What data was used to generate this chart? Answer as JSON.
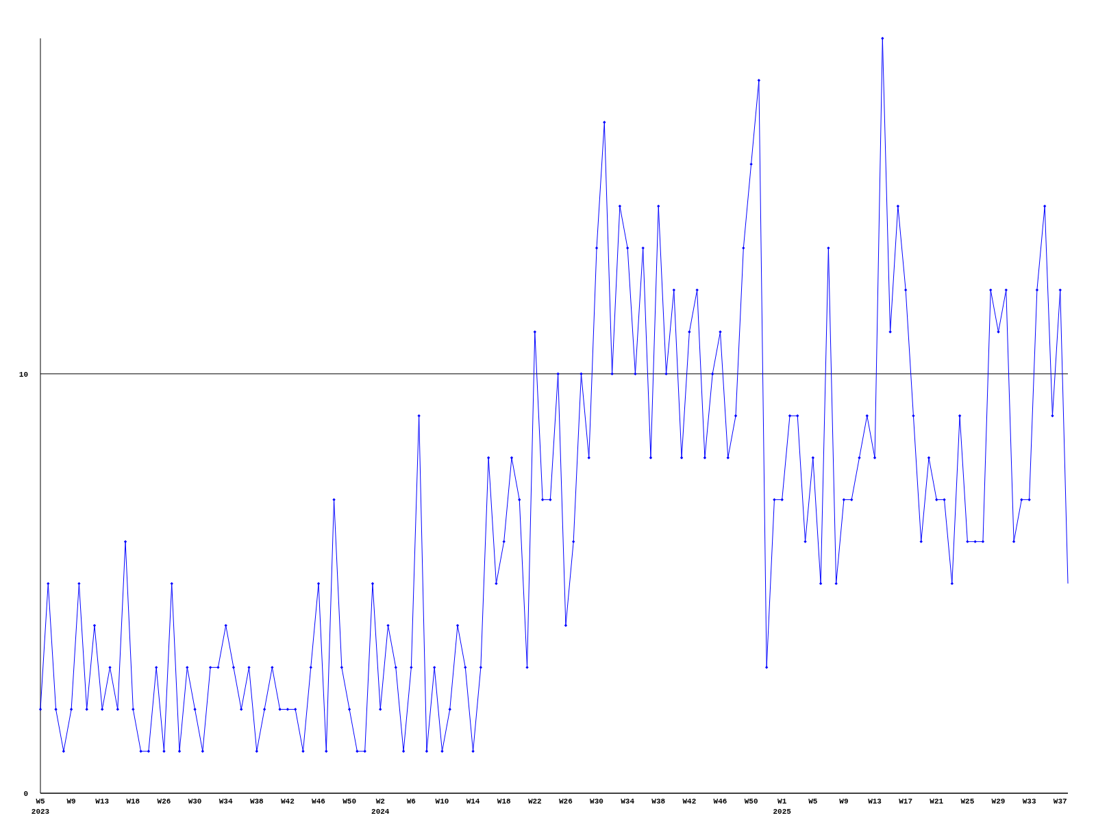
{
  "chart_data": {
    "type": "line",
    "categories": [
      "W5\n2023",
      null,
      null,
      null,
      "W9",
      null,
      null,
      null,
      "W13",
      null,
      null,
      null,
      "W18",
      null,
      null,
      null,
      "W26",
      null,
      null,
      null,
      "W30",
      null,
      null,
      null,
      "W34",
      null,
      null,
      null,
      "W38",
      null,
      null,
      null,
      "W42",
      null,
      null,
      null,
      "W46",
      null,
      null,
      null,
      "W50",
      null,
      null,
      null,
      "W2\n2024",
      null,
      null,
      null,
      "W6",
      null,
      null,
      null,
      "W10",
      null,
      null,
      null,
      "W14",
      null,
      null,
      null,
      "W18",
      null,
      null,
      null,
      "W22",
      null,
      null,
      null,
      "W26",
      null,
      null,
      null,
      "W30",
      null,
      null,
      null,
      "W34",
      null,
      null,
      null,
      "W38",
      null,
      null,
      null,
      "W42",
      null,
      null,
      null,
      "W46",
      null,
      null,
      null,
      "W50",
      null,
      null,
      null,
      "W1\n2025",
      null,
      null,
      null,
      "W5",
      null,
      null,
      null,
      "W9",
      null,
      null,
      null,
      "W13",
      null,
      null,
      null,
      "W17",
      null,
      null,
      null,
      "W21",
      null,
      null,
      null,
      "W25",
      null,
      null,
      null,
      "W29",
      null,
      null,
      null,
      "W33",
      null,
      null,
      null,
      "W37",
      null
    ],
    "series": [
      {
        "color": "#0000ff",
        "values": [
          2,
          5,
          2,
          1,
          2,
          5,
          2,
          4,
          2,
          3,
          2,
          6,
          2,
          1,
          1,
          3,
          1,
          5,
          1,
          3,
          2,
          1,
          3,
          3,
          4,
          3,
          2,
          3,
          1,
          2,
          3,
          2,
          2,
          2,
          1,
          3,
          5,
          1,
          7,
          3,
          2,
          1,
          1,
          5,
          2,
          4,
          3,
          1,
          3,
          9,
          1,
          3,
          1,
          2,
          4,
          3,
          1,
          3,
          8,
          5,
          6,
          8,
          7,
          3,
          11,
          7,
          7,
          10,
          4,
          6,
          10,
          8,
          13,
          16,
          10,
          14,
          13,
          10,
          13,
          8,
          14,
          10,
          12,
          8,
          11,
          12,
          8,
          10,
          11,
          8,
          9,
          13,
          15,
          17,
          3,
          7,
          7,
          9,
          9,
          6,
          8,
          5,
          13,
          5,
          7,
          7,
          8,
          9,
          8,
          18,
          11,
          14,
          12,
          9,
          6,
          8,
          7,
          7,
          5,
          9,
          6,
          6,
          6,
          12,
          11,
          12,
          6,
          7,
          7,
          12,
          14,
          9,
          12,
          5
        ]
      }
    ],
    "ylim": [
      0,
      18
    ],
    "yticks": [
      0,
      10
    ],
    "grid": "y",
    "marker": "diamond",
    "line_style": "solid"
  }
}
